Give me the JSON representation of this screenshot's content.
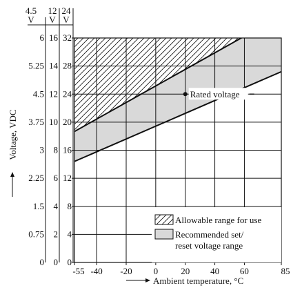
{
  "chart_data": {
    "type": "area",
    "title": "",
    "xlabel": "Ambient temperature, °C",
    "ylabel": "Voltage, VDC",
    "xlim": [
      -55,
      85
    ],
    "ylim": [
      0,
      6
    ],
    "x_ticks": [
      "-55",
      "-40",
      "-20",
      "0",
      "20",
      "40",
      "60",
      "85"
    ],
    "x_tick_values": [
      -55,
      -40,
      -20,
      0,
      20,
      40,
      60,
      85
    ],
    "y_axes": [
      {
        "header": [
          "4.5",
          "V"
        ],
        "ticks": [
          "6",
          "5.25",
          "4.5",
          "3.75",
          "3",
          "2.25",
          "1.5",
          "0.75",
          "0"
        ],
        "max": 6
      },
      {
        "header": [
          "12",
          "V"
        ],
        "ticks": [
          "16",
          "14",
          "12",
          "10",
          "8",
          "6",
          "4",
          "2",
          "0"
        ],
        "max": 16
      },
      {
        "header": [
          "24",
          "V"
        ],
        "ticks": [
          "32",
          "28",
          "24",
          "20",
          "16",
          "12",
          "8",
          "4",
          "0"
        ],
        "max": 32
      }
    ],
    "y_tick_values_primary": [
      6,
      5.25,
      4.5,
      3.75,
      3,
      2.25,
      1.5,
      0.75,
      0
    ],
    "series": [
      {
        "name": "Allowable range for use",
        "x": [
          -55,
          85
        ],
        "y": [
          3.5,
          6.6
        ],
        "fill": "hatch",
        "bound": "above-upper-line"
      },
      {
        "name": "Recommended set/ reset voltage range",
        "upper": {
          "x": [
            -55,
            85
          ],
          "y": [
            3.5,
            6.6
          ]
        },
        "lower": {
          "x": [
            -55,
            85
          ],
          "y": [
            2.7,
            5.1
          ]
        },
        "fill": "gray"
      }
    ],
    "annotations": [
      {
        "text": "Rated voltage",
        "x": 20,
        "y": 4.5
      }
    ],
    "legend": {
      "placement": "bottom-right",
      "entries": [
        {
          "label": "Allowable range for use",
          "swatch": "hatch"
        },
        {
          "label_lines": [
            "Recommended set/",
            "reset voltage range"
          ],
          "swatch": "gray"
        }
      ]
    },
    "grid": true,
    "colors": {
      "gray_fill": "#d9d9d9",
      "line": "#111111"
    }
  }
}
